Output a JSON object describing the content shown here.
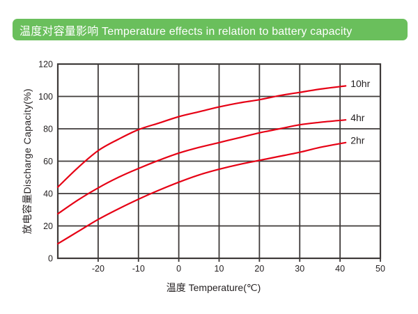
{
  "banner": {
    "title": "温度对容量影响 Temperature effects in relation to battery capacity",
    "bg_color": "#6abf5c",
    "text_color": "#ffffff"
  },
  "chart_data": {
    "type": "line",
    "title": "温度对容量影响 Temperature effects in relation to battery capacity",
    "xlabel": "温度 Temperature(℃)",
    "ylabel": "放电容量Discharge Capacity(%)",
    "xlim": [
      -30,
      50
    ],
    "ylim": [
      0,
      120
    ],
    "x_ticks": [
      -20,
      -10,
      0,
      10,
      20,
      30,
      40,
      50
    ],
    "y_ticks": [
      0,
      20,
      40,
      60,
      80,
      100,
      120
    ],
    "grid": true,
    "legend_position": "inline-right-of-curves",
    "line_color": "#e60014",
    "grid_color": "#3e3a39",
    "text_color": "#231f20",
    "series": [
      {
        "name": "10hr",
        "points": [
          [
            -30,
            44
          ],
          [
            -25,
            56
          ],
          [
            -20,
            66.5
          ],
          [
            -15,
            73.5
          ],
          [
            -10,
            79.5
          ],
          [
            -5,
            83.5
          ],
          [
            0,
            87.5
          ],
          [
            5,
            90.5
          ],
          [
            10,
            93.5
          ],
          [
            15,
            96
          ],
          [
            20,
            98
          ],
          [
            25,
            100.5
          ],
          [
            30,
            102.5
          ],
          [
            35,
            104.5
          ],
          [
            41.4,
            106.5
          ]
        ]
      },
      {
        "name": "4hr",
        "points": [
          [
            -30,
            27.5
          ],
          [
            -25,
            36
          ],
          [
            -20,
            43.5
          ],
          [
            -15,
            50
          ],
          [
            -10,
            55.5
          ],
          [
            -5,
            60.5
          ],
          [
            0,
            65
          ],
          [
            5,
            68.5
          ],
          [
            10,
            71.5
          ],
          [
            15,
            74.5
          ],
          [
            20,
            77.5
          ],
          [
            25,
            80
          ],
          [
            30,
            82.5
          ],
          [
            35,
            84
          ],
          [
            41.4,
            85.5
          ]
        ]
      },
      {
        "name": "2hr",
        "points": [
          [
            -30,
            9
          ],
          [
            -25,
            16.5
          ],
          [
            -20,
            24
          ],
          [
            -15,
            30.5
          ],
          [
            -10,
            36.5
          ],
          [
            -5,
            42
          ],
          [
            0,
            47
          ],
          [
            5,
            51.5
          ],
          [
            10,
            55
          ],
          [
            15,
            58
          ],
          [
            20,
            60.5
          ],
          [
            25,
            63
          ],
          [
            30,
            65.5
          ],
          [
            35,
            68.5
          ],
          [
            41.4,
            71.5
          ]
        ]
      }
    ]
  }
}
